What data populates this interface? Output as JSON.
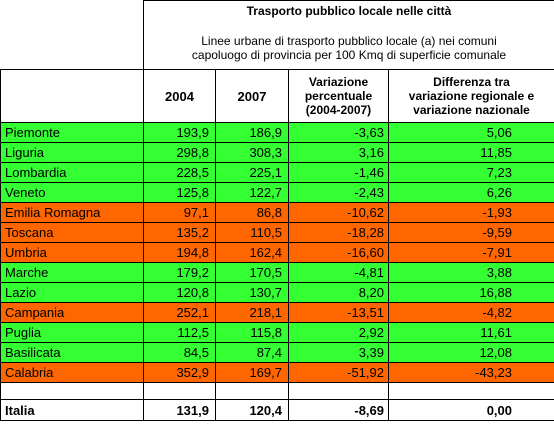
{
  "table": {
    "title": "Trasporto pubblico locale nelle città",
    "subtitle_line1": "Linee urbane di trasporto pubblico locale (a) nei comuni",
    "subtitle_line2": "capoluogo di provincia per 100 Kmq di superficie comunale",
    "headers": {
      "y2004": "2004",
      "y2007": "2007",
      "variation_line1": "Variazione",
      "variation_line2": "percentuale",
      "variation_line3": "(2004-2007)",
      "diff_line1": "Differenza tra",
      "diff_line2": "variazione regionale e",
      "diff_line3": "variazione nazionale"
    },
    "colors": {
      "above_average": "#33ff33",
      "below_average": "#ff6600"
    },
    "rows": [
      {
        "region": "Piemonte",
        "v2004": "193,9",
        "v2007": "186,9",
        "variation": "-3,63",
        "difference": "5,06",
        "status": "green"
      },
      {
        "region": "Liguria",
        "v2004": "298,8",
        "v2007": "308,3",
        "variation": "3,16",
        "difference": "11,85",
        "status": "green"
      },
      {
        "region": "Lombardia",
        "v2004": "228,5",
        "v2007": "225,1",
        "variation": "-1,46",
        "difference": "7,23",
        "status": "green"
      },
      {
        "region": "Veneto",
        "v2004": "125,8",
        "v2007": "122,7",
        "variation": "-2,43",
        "difference": "6,26",
        "status": "green"
      },
      {
        "region": "Emilia Romagna",
        "v2004": "97,1",
        "v2007": "86,8",
        "variation": "-10,62",
        "difference": "-1,93",
        "status": "orange"
      },
      {
        "region": "Toscana",
        "v2004": "135,2",
        "v2007": "110,5",
        "variation": "-18,28",
        "difference": "-9,59",
        "status": "orange"
      },
      {
        "region": "Umbria",
        "v2004": "194,8",
        "v2007": "162,4",
        "variation": "-16,60",
        "difference": "-7,91",
        "status": "orange"
      },
      {
        "region": "Marche",
        "v2004": "179,2",
        "v2007": "170,5",
        "variation": "-4,81",
        "difference": "3,88",
        "status": "green"
      },
      {
        "region": "Lazio",
        "v2004": "120,8",
        "v2007": "130,7",
        "variation": "8,20",
        "difference": "16,88",
        "status": "green"
      },
      {
        "region": "Campania",
        "v2004": "252,1",
        "v2007": "218,1",
        "variation": "-13,51",
        "difference": "-4,82",
        "status": "orange"
      },
      {
        "region": "Puglia",
        "v2004": "112,5",
        "v2007": "115,8",
        "variation": "2,92",
        "difference": "11,61",
        "status": "green"
      },
      {
        "region": "Basilicata",
        "v2004": "84,5",
        "v2007": "87,4",
        "variation": "3,39",
        "difference": "12,08",
        "status": "green"
      },
      {
        "region": "Calabria",
        "v2004": "352,9",
        "v2007": "169,7",
        "variation": "-51,92",
        "difference": "-43,23",
        "status": "orange"
      }
    ],
    "total": {
      "region": "Italia",
      "v2004": "131,9",
      "v2007": "120,4",
      "variation": "-8,69",
      "difference": "0,00"
    }
  }
}
